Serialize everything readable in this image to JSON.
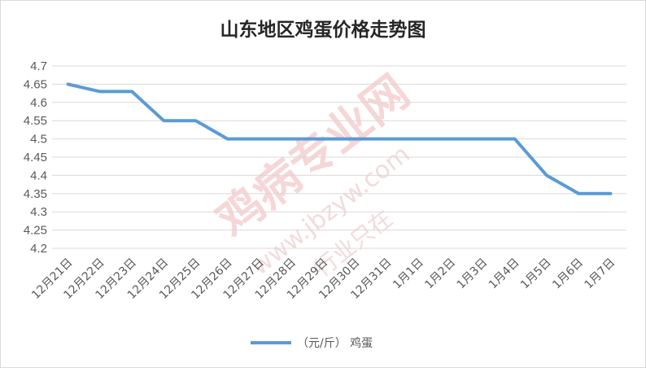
{
  "chart_data": {
    "type": "line",
    "title": "山东地区鸡蛋价格走势图",
    "categories": [
      "12月21日",
      "12月22日",
      "12月23日",
      "12月24日",
      "12月25日",
      "12月26日",
      "12月27日",
      "12月28日",
      "12月29日",
      "12月30日",
      "12月31日",
      "1月1日",
      "1月2日",
      "1月3日",
      "1月4日",
      "1月5日",
      "1月6日",
      "1月7日"
    ],
    "series": [
      {
        "name": "（元/斤） 鸡蛋",
        "values": [
          4.65,
          4.63,
          4.63,
          4.55,
          4.55,
          4.5,
          4.5,
          4.5,
          4.5,
          4.5,
          4.5,
          4.5,
          4.5,
          4.5,
          4.5,
          4.4,
          4.35,
          4.35
        ],
        "color": "#5b9bd5"
      }
    ],
    "ylim": [
      4.2,
      4.7
    ],
    "yticks": [
      4.2,
      4.25,
      4.3,
      4.35,
      4.4,
      4.45,
      4.5,
      4.55,
      4.6,
      4.65,
      4.7
    ],
    "grid": true,
    "legend_position": "bottom"
  },
  "watermark": {
    "brand": "鸡病专业网",
    "url": "www.jbzyw.com",
    "slogan": "行业只在"
  },
  "colors": {
    "gridline": "#d9d9d9",
    "axis_text": "#595959",
    "watermark": "#f3c9c9"
  }
}
